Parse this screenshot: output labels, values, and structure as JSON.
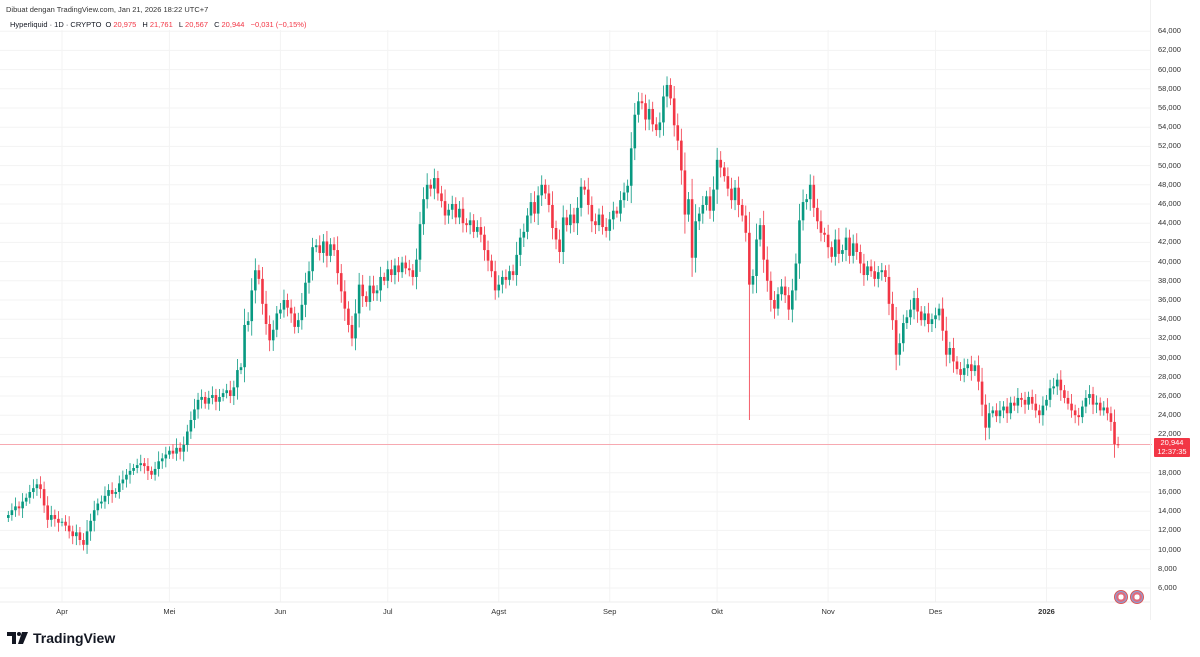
{
  "header": {
    "credit": "Dibuat dengan TradingView.com, Jan 21, 2026 18:22 UTC+7",
    "symbol": "Hyperliquid · 1D · CRYPTO",
    "open_label": "O",
    "open": "20,975",
    "high_label": "H",
    "high": "21,761",
    "low_label": "L",
    "low": "20,567",
    "close_label": "C",
    "close": "20,944",
    "change": "−0,031 (−0,15%)"
  },
  "price_label": {
    "price": "20,944",
    "countdown": "12:37:35"
  },
  "brand": "TradingView",
  "colors": {
    "up": "#089981",
    "down": "#f23645",
    "grid": "#f3f3f3",
    "price_line": "#f7a9b1"
  },
  "chart_data": {
    "type": "candlestick",
    "title": "",
    "xlabel": "",
    "ylabel": "",
    "start_date": "2025-03-17",
    "interval": "1D",
    "ylim": [
      5,
      65
    ],
    "grid": true,
    "y_ticks": [
      "64,000",
      "62,000",
      "60,000",
      "58,000",
      "56,000",
      "54,000",
      "52,000",
      "50,000",
      "48,000",
      "46,000",
      "44,000",
      "42,000",
      "40,000",
      "38,000",
      "36,000",
      "34,000",
      "32,000",
      "30,000",
      "28,000",
      "26,000",
      "24,000",
      "22,000",
      "18,000",
      "16,000",
      "14,000",
      "12,000",
      "10,000",
      "8,000",
      "6,000"
    ],
    "x_ticks": [
      {
        "label": "Apr",
        "date": "2025-04-01"
      },
      {
        "label": "Mei",
        "date": "2025-05-01"
      },
      {
        "label": "Jun",
        "date": "2025-06-01"
      },
      {
        "label": "Jul",
        "date": "2025-07-01"
      },
      {
        "label": "Agst",
        "date": "2025-08-01"
      },
      {
        "label": "Sep",
        "date": "2025-09-01"
      },
      {
        "label": "Okt",
        "date": "2025-10-01"
      },
      {
        "label": "Nov",
        "date": "2025-11-01"
      },
      {
        "label": "Des",
        "date": "2025-12-01"
      },
      {
        "label": "2026",
        "date": "2026-01-01"
      }
    ],
    "first_open": 13.3,
    "close": [
      13.6,
      14.1,
      14.5,
      14.3,
      15.0,
      15.4,
      16.0,
      16.4,
      16.8,
      16.3,
      14.6,
      13.1,
      13.6,
      13.2,
      12.8,
      12.9,
      12.5,
      11.9,
      11.4,
      11.8,
      11.0,
      10.5,
      11.9,
      13.0,
      14.1,
      14.8,
      15.0,
      15.6,
      16.2,
      15.8,
      16.0,
      16.9,
      17.3,
      17.8,
      18.2,
      18.5,
      18.8,
      19.0,
      18.7,
      18.2,
      17.8,
      18.4,
      19.2,
      19.5,
      19.9,
      20.3,
      20.0,
      20.6,
      20.2,
      20.9,
      22.3,
      23.5,
      24.6,
      25.6,
      25.9,
      25.2,
      25.8,
      26.1,
      25.4,
      25.9,
      26.3,
      26.6,
      26.0,
      26.9,
      28.7,
      29.0,
      33.4,
      33.8,
      37.0,
      39.1,
      38.2,
      35.6,
      33.5,
      31.8,
      32.9,
      34.6,
      35.0,
      36.0,
      35.2,
      34.6,
      33.2,
      33.9,
      35.5,
      37.8,
      39.0,
      41.5,
      41.7,
      40.9,
      42.1,
      40.6,
      41.8,
      41.2,
      38.8,
      36.9,
      35.1,
      33.4,
      32.0,
      34.6,
      37.6,
      36.4,
      35.8,
      37.5,
      36.7,
      37.0,
      38.4,
      38.0,
      39.2,
      38.6,
      39.6,
      38.9,
      39.9,
      39.3,
      39.1,
      38.4,
      40.2,
      43.9,
      46.5,
      48.0,
      47.6,
      48.7,
      47.1,
      46.3,
      44.8,
      45.4,
      46.0,
      44.6,
      45.5,
      44.0,
      43.8,
      44.3,
      43.1,
      43.6,
      42.8,
      41.2,
      40.1,
      39.0,
      37.0,
      37.6,
      38.4,
      38.1,
      39.0,
      38.6,
      40.7,
      42.5,
      43.1,
      44.8,
      46.2,
      45.0,
      46.9,
      48.0,
      47.1,
      45.9,
      43.5,
      42.3,
      41.0,
      44.6,
      43.8,
      44.9,
      44.0,
      45.6,
      47.8,
      47.5,
      45.9,
      44.2,
      43.8,
      44.9,
      43.6,
      43.2,
      44.4,
      45.3,
      45.0,
      46.4,
      47.2,
      47.9,
      51.8,
      55.3,
      56.7,
      56.5,
      54.8,
      55.9,
      54.3,
      53.7,
      54.5,
      57.2,
      58.4,
      57.0,
      54.2,
      52.6,
      49.5,
      44.9,
      46.5,
      40.4,
      44.2,
      45.0,
      45.9,
      46.8,
      45.3,
      47.5,
      50.6,
      49.8,
      48.9,
      47.6,
      46.4,
      47.7,
      45.9,
      44.8,
      43.0,
      37.6,
      38.5,
      42.3,
      43.8,
      40.2,
      38.0,
      36.0,
      35.1,
      36.6,
      37.4,
      36.5,
      35.0,
      37.0,
      39.8,
      44.3,
      46.2,
      46.5,
      48.0,
      45.6,
      44.2,
      43.0,
      42.8,
      41.5,
      40.5,
      42.3,
      40.8,
      41.2,
      42.5,
      40.6,
      41.9,
      41.0,
      39.8,
      38.6,
      39.5,
      39.0,
      38.2,
      38.9,
      39.1,
      38.4,
      35.6,
      33.9,
      30.3,
      31.5,
      33.6,
      34.2,
      35.0,
      36.2,
      34.8,
      33.9,
      34.6,
      33.5,
      34.0,
      34.4,
      35.1,
      32.8,
      30.3,
      31.0,
      29.6,
      28.8,
      28.2,
      28.9,
      29.3,
      28.6,
      29.2,
      27.5,
      25.1,
      22.7,
      24.2,
      24.5,
      23.9,
      24.5,
      24.9,
      24.2,
      25.3,
      25.0,
      25.8,
      25.6,
      25.1,
      25.9,
      25.2,
      24.5,
      24.0,
      25.0,
      25.6,
      26.8,
      27.0,
      27.7,
      26.6,
      25.8,
      25.2,
      24.5,
      24.0,
      23.8,
      24.9,
      25.8,
      26.2,
      25.1,
      25.3,
      24.5,
      24.8,
      24.2,
      23.3,
      20.975,
      20.944
    ],
    "extremes": [
      {
        "date": "2025-10-10",
        "low": 23.5
      },
      {
        "date": "2025-09-17",
        "high": 59.3
      },
      {
        "date": "2026-01-21",
        "high": 21.761,
        "low": 20.567
      }
    ],
    "last_price": 20.944
  }
}
